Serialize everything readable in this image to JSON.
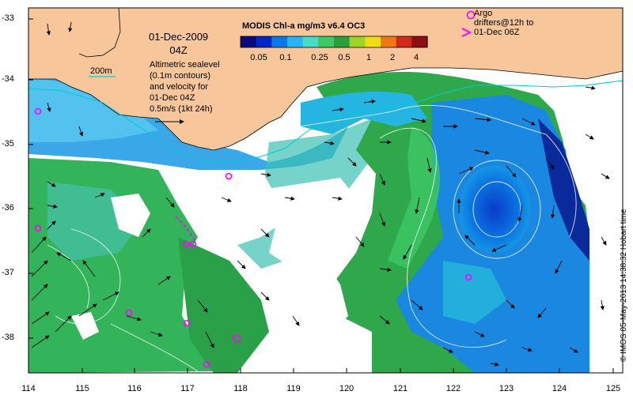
{
  "map": {
    "date": "01-Dec-2009",
    "hour": "04Z",
    "colorbar": {
      "title": "MODIS Chl-a mg/m3 v6.4 OC3",
      "ticks": [
        "0.05",
        "0.1",
        "0.25",
        "0.5",
        "1",
        "2",
        "4"
      ],
      "colors": [
        "#0a0a80",
        "#0028c8",
        "#0a78e6",
        "#28b4f0",
        "#46dcc8",
        "#3cc864",
        "#2aa03c",
        "#a0d228",
        "#f0dc14",
        "#f07814",
        "#d2281e",
        "#8c1010"
      ]
    },
    "isobath_label": "200m",
    "altimetry_text": [
      "Altimetric sealevel",
      "(0.1m contours)",
      "and velocity for",
      "01-Dec 04Z",
      "0.5m/s (1kt 24h)"
    ],
    "argo_text": [
      "Argo",
      "drifters@12h to",
      "01-Dec 06Z"
    ],
    "credit": "© IMOS 05-May-2013 14:38:32 Hobart time",
    "y_ticks": [
      "-33",
      "-34",
      "-35",
      "-36",
      "-37",
      "-38"
    ],
    "x_ticks": [
      "114",
      "115",
      "116",
      "117",
      "118",
      "119",
      "120",
      "121",
      "122",
      "123",
      "124",
      "125"
    ],
    "colors": {
      "land": "#f7c79b",
      "coast": "#000000",
      "isobath": "#00ccd6",
      "argo": "#ff00ff"
    }
  }
}
